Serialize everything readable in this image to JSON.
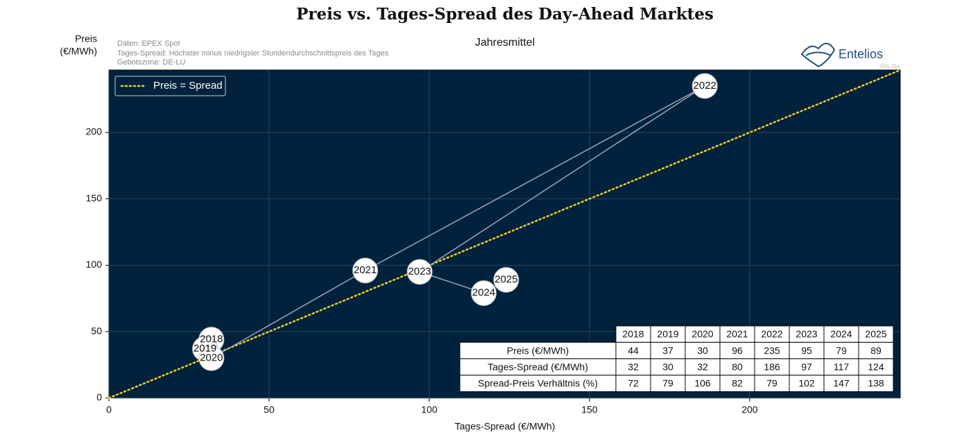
{
  "chart_data": {
    "type": "scatter",
    "title": "Preis vs. Tages-Spread des Day-Ahead Marktes",
    "subtitle": "Jahresmittel",
    "ylabel": [
      "Preis",
      "(€/MWh)"
    ],
    "xlabel": "Tages-Spread (€/MWh)",
    "notes": [
      "Daten: EPEX Spot",
      "Tages-Spread: Höchster minus niedrigster Stundendurchschnittspreis des Tages",
      "Gebotszone: DE-LU"
    ],
    "logo": "Entelios",
    "tag": "#5ls-3bx",
    "labels": [
      "2018",
      "2019",
      "2020",
      "2021",
      "2022",
      "2023",
      "2024",
      "2025"
    ],
    "x": [
      32,
      30,
      32,
      80,
      186,
      97,
      117,
      124
    ],
    "y": [
      44,
      37,
      30,
      96,
      235,
      95,
      79,
      89
    ],
    "point_color": "#ffffff",
    "line_color": "#9aa6b2",
    "background": "#01223d",
    "reference_line": {
      "name": "Preis = Spread",
      "color": "#f2d21b"
    },
    "legend": "upper left",
    "grid": true,
    "xlim": [
      0,
      247
    ],
    "ylim": [
      0,
      247
    ],
    "xticks": [
      0,
      50,
      100,
      150,
      200
    ],
    "yticks": [
      0,
      50,
      100,
      150,
      200
    ],
    "table": {
      "row_labels": [
        "Preis (€/MWh)",
        "Tages-Spread (€/MWh)",
        "Spread-Preis Verhältnis (%)"
      ],
      "ratio": [
        72,
        79,
        106,
        82,
        79,
        102,
        147,
        138
      ]
    }
  }
}
